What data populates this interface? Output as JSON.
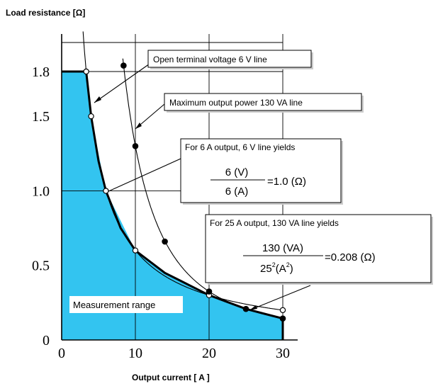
{
  "chart_data": {
    "type": "line",
    "title": "",
    "ylabel": "Load resistance [Ω]",
    "xlabel": "Output current [ A ]",
    "xlim": [
      0,
      30
    ],
    "ylim": [
      0,
      1.8
    ],
    "x_ticks": [
      "0",
      "10",
      "20",
      "30"
    ],
    "y_ticks": [
      "0",
      "0.5",
      "1.0",
      "1.5",
      "1.8"
    ],
    "grid": true,
    "series": [
      {
        "points": [
          [
            3.33,
            1.8
          ],
          [
            4,
            1.5
          ],
          [
            6,
            1.0
          ],
          [
            10,
            0.6
          ],
          [
            20,
            0.3
          ],
          [
            30,
            0.2
          ]
        ]
      },
      {
        "points": [
          [
            8.4,
            1.84
          ],
          [
            10,
            1.3
          ],
          [
            14,
            0.66
          ],
          [
            20,
            0.325
          ],
          [
            25,
            0.208
          ],
          [
            30,
            0.144
          ]
        ]
      }
    ],
    "shaded_region": {
      "label": "Measurement range",
      "color": "#33c4f0",
      "boundary": [
        [
          0,
          1.8
        ],
        [
          3.33,
          1.8
        ],
        [
          4,
          1.5
        ],
        [
          6,
          1.0
        ],
        [
          10,
          0.6
        ],
        [
          14,
          0.45
        ],
        [
          20,
          0.3
        ],
        [
          25,
          0.208
        ],
        [
          30,
          0.144
        ],
        [
          30,
          0
        ],
        [
          0,
          0
        ]
      ]
    },
    "annotations": {
      "open_voltage_line": "Open terminal voltage 6 V line",
      "max_power_line": "Maximum output power 130 VA line",
      "box1_title": "For 6 A output, 6 V line yields",
      "box1_num": "6 (V)",
      "box1_den": "6 (A)",
      "box1_result": "=1.0 (Ω)",
      "box2_title": "For 25 A output, 130 VA line yields",
      "box2_num": "130 (VA)",
      "box2_den_base": "25",
      "box2_den_exp": "2",
      "box2_den_unit": "(A",
      "box2_den_unit_exp": "2",
      "box2_den_close": ")",
      "box2_result": "=0.208 (Ω)"
    },
    "colors": {
      "fill": "#33c4f0",
      "line": "#000000"
    }
  }
}
